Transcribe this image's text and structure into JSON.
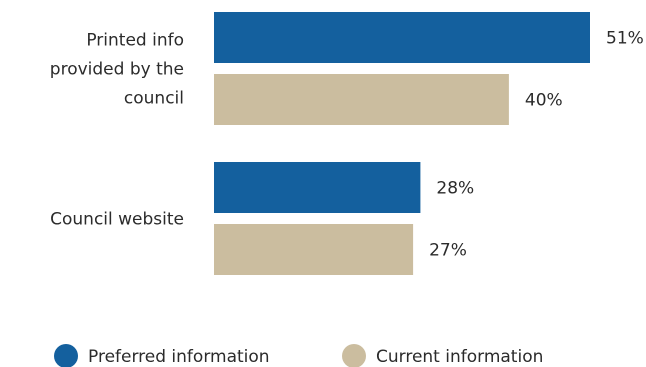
{
  "chart_data": {
    "type": "bar",
    "orientation": "horizontal",
    "categories": [
      [
        "Printed info",
        "provided by the",
        "council"
      ],
      [
        "Council website"
      ]
    ],
    "series": [
      {
        "name": "Preferred information",
        "values": [
          51,
          28
        ],
        "labels": [
          "51%",
          "28%"
        ],
        "color": "#14609e"
      },
      {
        "name": "Current information",
        "values": [
          40,
          27
        ],
        "labels": [
          "40%",
          "27%"
        ],
        "color": "#cbbd9f"
      }
    ],
    "title": "",
    "xlabel": "",
    "ylabel": "",
    "xlim": [
      0,
      55
    ],
    "grid": false,
    "legend_position": "bottom-center"
  }
}
